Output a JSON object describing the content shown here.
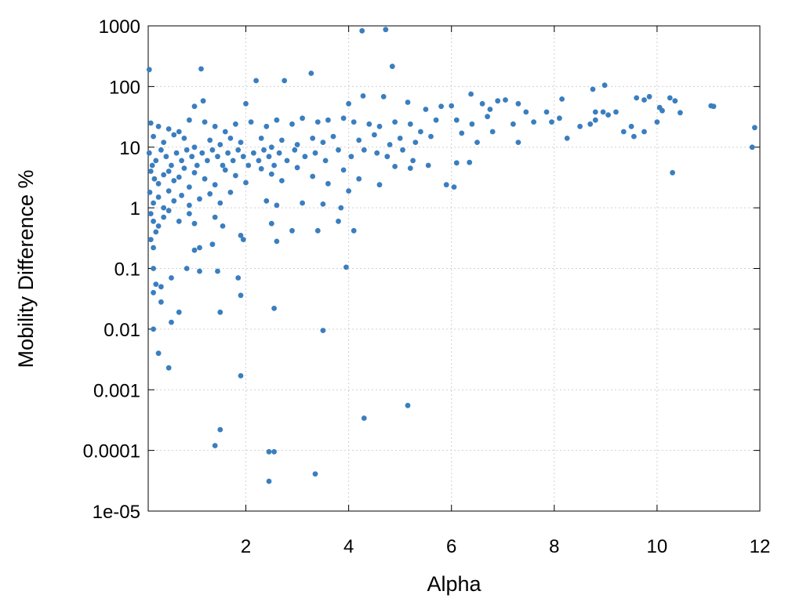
{
  "chart_data": {
    "type": "scatter",
    "xlabel": "Alpha",
    "ylabel": "Mobility Difference %",
    "xlim": [
      0.1,
      12
    ],
    "ylim": [
      1e-05,
      1000
    ],
    "y_scale": "log",
    "x_ticks": [
      2,
      4,
      6,
      8,
      10,
      12
    ],
    "x_tick_labels": [
      "2",
      "4",
      "6",
      "8",
      "10",
      "12"
    ],
    "y_ticks": [
      1e-05,
      0.0001,
      0.001,
      0.01,
      0.1,
      1,
      10,
      100,
      1000
    ],
    "y_tick_labels": [
      "1e-05",
      "0.0001",
      "0.001",
      "0.01",
      "0.1",
      "1",
      "10",
      "100",
      "1000"
    ],
    "grid": true,
    "marker_color": "#3a7ebf",
    "series": [
      {
        "points": [
          [
            0.12,
            190
          ],
          [
            1.13,
            195
          ],
          [
            2.2,
            125
          ],
          [
            2.75,
            125
          ],
          [
            3.27,
            165
          ],
          [
            4.26,
            830
          ],
          [
            4.72,
            870
          ],
          [
            4.85,
            215
          ],
          [
            1.17,
            58
          ],
          [
            1.0,
            47
          ],
          [
            2.0,
            52
          ],
          [
            4.0,
            52
          ],
          [
            4.28,
            70
          ],
          [
            4.68,
            68
          ],
          [
            5.15,
            55
          ],
          [
            6.38,
            75
          ],
          [
            6.9,
            58
          ],
          [
            7.05,
            60
          ],
          [
            7.3,
            52
          ],
          [
            8.15,
            62
          ],
          [
            8.75,
            90
          ],
          [
            8.98,
            105
          ],
          [
            9.85,
            68
          ],
          [
            10.05,
            45
          ],
          [
            10.25,
            65
          ],
          [
            10.35,
            58
          ],
          [
            11.05,
            48
          ],
          [
            11.1,
            47
          ],
          [
            9.6,
            65
          ],
          [
            9.75,
            60
          ],
          [
            8.95,
            38
          ],
          [
            9.2,
            38
          ],
          [
            5.8,
            47
          ],
          [
            6.0,
            48
          ],
          [
            6.6,
            52
          ],
          [
            7.45,
            38
          ],
          [
            7.85,
            38
          ],
          [
            8.8,
            38
          ],
          [
            10.1,
            40
          ],
          [
            10.45,
            37
          ],
          [
            5.5,
            42
          ],
          [
            6.75,
            42
          ],
          [
            0.15,
            25
          ],
          [
            0.3,
            22
          ],
          [
            0.5,
            20
          ],
          [
            0.7,
            18
          ],
          [
            0.9,
            28
          ],
          [
            1.2,
            26
          ],
          [
            1.4,
            22
          ],
          [
            1.6,
            18
          ],
          [
            1.8,
            24
          ],
          [
            2.1,
            26
          ],
          [
            2.4,
            22
          ],
          [
            2.6,
            28
          ],
          [
            2.9,
            24
          ],
          [
            3.1,
            30
          ],
          [
            3.4,
            26
          ],
          [
            3.6,
            28
          ],
          [
            3.9,
            30
          ],
          [
            4.1,
            26
          ],
          [
            4.4,
            24
          ],
          [
            4.6,
            22
          ],
          [
            4.9,
            26
          ],
          [
            5.2,
            24
          ],
          [
            5.4,
            18
          ],
          [
            5.7,
            28
          ],
          [
            6.1,
            28
          ],
          [
            6.4,
            24
          ],
          [
            6.7,
            32
          ],
          [
            7.2,
            24
          ],
          [
            7.6,
            26
          ],
          [
            7.95,
            26
          ],
          [
            8.1,
            30
          ],
          [
            8.5,
            22
          ],
          [
            8.8,
            28
          ],
          [
            9.05,
            34
          ],
          [
            9.5,
            22
          ],
          [
            10.0,
            26
          ],
          [
            0.2,
            15
          ],
          [
            0.4,
            12
          ],
          [
            0.6,
            16
          ],
          [
            0.8,
            14
          ],
          [
            1.0,
            10
          ],
          [
            1.3,
            13
          ],
          [
            1.5,
            11
          ],
          [
            1.7,
            14
          ],
          [
            1.9,
            12
          ],
          [
            2.3,
            14
          ],
          [
            2.5,
            10
          ],
          [
            2.7,
            13
          ],
          [
            3.0,
            11
          ],
          [
            3.3,
            14
          ],
          [
            3.5,
            12
          ],
          [
            3.7,
            15
          ],
          [
            4.2,
            13
          ],
          [
            4.5,
            16
          ],
          [
            4.8,
            11
          ],
          [
            5.0,
            14
          ],
          [
            5.3,
            12
          ],
          [
            5.6,
            15
          ],
          [
            6.2,
            17
          ],
          [
            6.5,
            12
          ],
          [
            6.8,
            18
          ],
          [
            7.3,
            12
          ],
          [
            8.25,
            14
          ],
          [
            8.7,
            24
          ],
          [
            9.35,
            18
          ],
          [
            9.55,
            15
          ],
          [
            9.75,
            18
          ],
          [
            11.85,
            10
          ],
          [
            11.9,
            21
          ],
          [
            0.12,
            8
          ],
          [
            0.18,
            5
          ],
          [
            0.25,
            6
          ],
          [
            0.35,
            9
          ],
          [
            0.45,
            7
          ],
          [
            0.55,
            5
          ],
          [
            0.65,
            8
          ],
          [
            0.75,
            6
          ],
          [
            0.85,
            9
          ],
          [
            0.95,
            7
          ],
          [
            1.05,
            5
          ],
          [
            1.15,
            8
          ],
          [
            1.25,
            6
          ],
          [
            1.35,
            9
          ],
          [
            1.45,
            7
          ],
          [
            1.55,
            5
          ],
          [
            1.65,
            8
          ],
          [
            1.75,
            6
          ],
          [
            1.85,
            9
          ],
          [
            1.95,
            7
          ],
          [
            2.05,
            5
          ],
          [
            2.15,
            8
          ],
          [
            2.25,
            6
          ],
          [
            2.35,
            9
          ],
          [
            2.45,
            7
          ],
          [
            2.55,
            5
          ],
          [
            2.65,
            8
          ],
          [
            2.8,
            6
          ],
          [
            2.95,
            9
          ],
          [
            3.15,
            7
          ],
          [
            3.35,
            8
          ],
          [
            3.55,
            6
          ],
          [
            3.8,
            9
          ],
          [
            4.05,
            7
          ],
          [
            4.3,
            9
          ],
          [
            4.55,
            8
          ],
          [
            4.75,
            7
          ],
          [
            5.05,
            9
          ],
          [
            5.25,
            6
          ],
          [
            5.55,
            5
          ],
          [
            0.15,
            4
          ],
          [
            0.22,
            3
          ],
          [
            0.3,
            2.5
          ],
          [
            0.4,
            3.5
          ],
          [
            0.5,
            4
          ],
          [
            0.6,
            2.8
          ],
          [
            0.7,
            3.2
          ],
          [
            0.8,
            4.5
          ],
          [
            0.9,
            2.2
          ],
          [
            1.0,
            3.8
          ],
          [
            1.2,
            3
          ],
          [
            1.4,
            2.4
          ],
          [
            1.6,
            4.2
          ],
          [
            1.8,
            3.4
          ],
          [
            2.0,
            2.6
          ],
          [
            2.3,
            4.4
          ],
          [
            2.5,
            3.6
          ],
          [
            2.7,
            2.8
          ],
          [
            3.0,
            4.6
          ],
          [
            3.3,
            3.3
          ],
          [
            3.6,
            2.5
          ],
          [
            3.9,
            4.2
          ],
          [
            4.2,
            3.0
          ],
          [
            4.6,
            2.4
          ],
          [
            4.9,
            4.8
          ],
          [
            5.2,
            4.5
          ],
          [
            5.9,
            2.4
          ],
          [
            6.05,
            2.2
          ],
          [
            6.1,
            5.5
          ],
          [
            6.35,
            5.6
          ],
          [
            10.3,
            3.8
          ],
          [
            0.13,
            1.8
          ],
          [
            0.2,
            1.2
          ],
          [
            0.3,
            1.5
          ],
          [
            0.4,
            1.0
          ],
          [
            0.5,
            1.9
          ],
          [
            0.6,
            1.3
          ],
          [
            0.75,
            1.6
          ],
          [
            0.9,
            1.1
          ],
          [
            1.1,
            1.4
          ],
          [
            1.3,
            1.7
          ],
          [
            1.5,
            1.2
          ],
          [
            1.7,
            1.8
          ],
          [
            2.4,
            1.3
          ],
          [
            2.6,
            1.1
          ],
          [
            3.1,
            1.2
          ],
          [
            3.5,
            1.15
          ],
          [
            3.85,
            1.0
          ],
          [
            4.0,
            1.9
          ],
          [
            0.15,
            0.8
          ],
          [
            0.2,
            0.6
          ],
          [
            0.3,
            0.5
          ],
          [
            0.4,
            0.7
          ],
          [
            0.5,
            0.9
          ],
          [
            0.7,
            0.6
          ],
          [
            0.9,
            0.8
          ],
          [
            1.0,
            0.55
          ],
          [
            1.4,
            0.7
          ],
          [
            1.55,
            0.5
          ],
          [
            1.9,
            0.35
          ],
          [
            2.5,
            0.55
          ],
          [
            2.9,
            0.42
          ],
          [
            3.4,
            0.42
          ],
          [
            3.8,
            0.6
          ],
          [
            4.1,
            0.42
          ],
          [
            1.0,
            0.2
          ],
          [
            1.1,
            0.22
          ],
          [
            1.35,
            0.25
          ],
          [
            2.6,
            0.28
          ],
          [
            1.95,
            0.3
          ],
          [
            0.15,
            0.3
          ],
          [
            0.2,
            0.22
          ],
          [
            0.25,
            0.4
          ],
          [
            0.2,
            0.1
          ],
          [
            0.85,
            0.1
          ],
          [
            1.1,
            0.09
          ],
          [
            1.45,
            0.09
          ],
          [
            3.95,
            0.105
          ],
          [
            1.85,
            0.07
          ],
          [
            0.55,
            0.07
          ],
          [
            0.25,
            0.055
          ],
          [
            0.35,
            0.05
          ],
          [
            0.2,
            0.04
          ],
          [
            0.35,
            0.028
          ],
          [
            1.9,
            0.036
          ],
          [
            0.55,
            0.013
          ],
          [
            0.7,
            0.019
          ],
          [
            1.5,
            0.019
          ],
          [
            2.55,
            0.022
          ],
          [
            3.5,
            0.0095
          ],
          [
            0.2,
            0.01
          ],
          [
            0.3,
            0.004
          ],
          [
            0.5,
            0.0023
          ],
          [
            1.9,
            0.0017
          ],
          [
            5.15,
            0.00055
          ],
          [
            4.3,
            0.00034
          ],
          [
            1.5,
            0.00022
          ],
          [
            1.4,
            0.00012
          ],
          [
            2.45,
            9.5e-05
          ],
          [
            2.55,
            9.5e-05
          ],
          [
            3.35,
            4.1e-05
          ],
          [
            2.45,
            3.1e-05
          ]
        ]
      }
    ]
  }
}
